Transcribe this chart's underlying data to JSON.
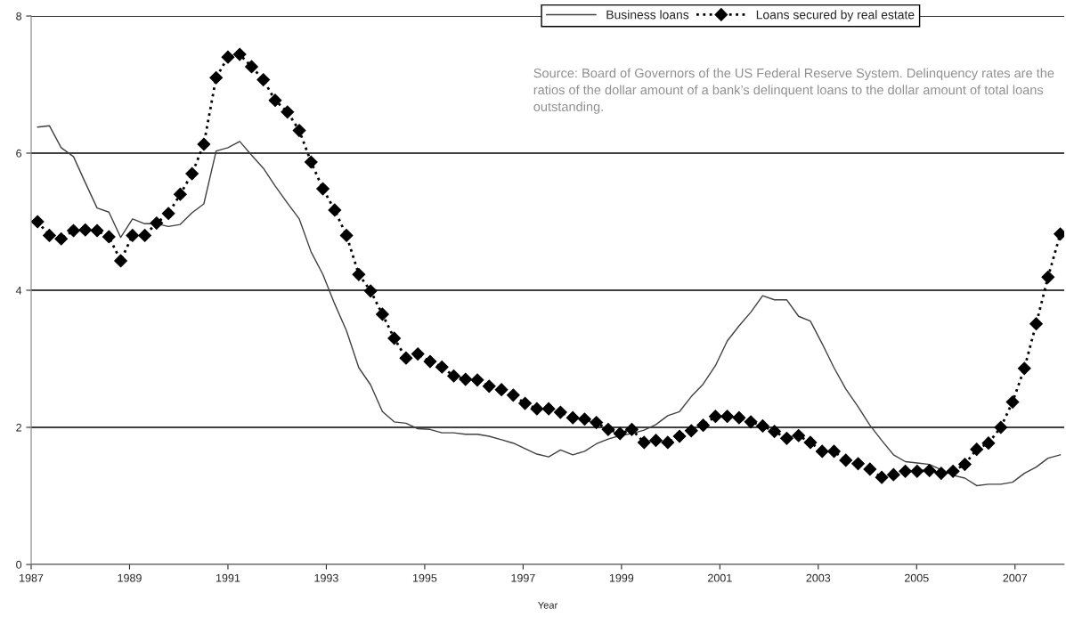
{
  "chart_data": {
    "type": "line",
    "xlabel": "Year",
    "xlim": [
      1987,
      2008
    ],
    "xticks": [
      1987,
      1989,
      1991,
      1993,
      1995,
      1997,
      1999,
      2001,
      2003,
      2005,
      2007
    ],
    "ylim": [
      0,
      8
    ],
    "yticks": [
      0,
      2,
      4,
      6,
      8
    ],
    "grid": "y",
    "legend": "top right",
    "x": [
      1987.13,
      1987.37,
      1987.61,
      1987.86,
      1988.1,
      1988.34,
      1988.58,
      1988.82,
      1989.06,
      1989.31,
      1989.55,
      1989.79,
      1990.03,
      1990.27,
      1990.51,
      1990.76,
      1991.0,
      1991.24,
      1991.48,
      1991.72,
      1991.96,
      1992.21,
      1992.45,
      1992.69,
      1992.93,
      1993.17,
      1993.41,
      1993.66,
      1993.9,
      1994.14,
      1994.38,
      1994.62,
      1994.86,
      1995.11,
      1995.35,
      1995.59,
      1995.83,
      1996.07,
      1996.31,
      1996.56,
      1996.8,
      1997.04,
      1997.28,
      1997.52,
      1997.76,
      1998.01,
      1998.25,
      1998.49,
      1998.73,
      1998.97,
      1999.21,
      1999.46,
      1999.7,
      1999.94,
      2000.18,
      2000.42,
      2000.66,
      2000.91,
      2001.15,
      2001.39,
      2001.63,
      2001.87,
      2002.11,
      2002.36,
      2002.6,
      2002.84,
      2003.08,
      2003.32,
      2003.56,
      2003.81,
      2004.05,
      2004.29,
      2004.53,
      2004.77,
      2005.01,
      2005.26,
      2005.5,
      2005.74,
      2005.98,
      2006.22,
      2006.46,
      2006.71,
      2006.95,
      2007.19,
      2007.43,
      2007.67,
      2007.92
    ],
    "series": [
      {
        "name": "Business loans",
        "color": "#404040",
        "line_style": "solid",
        "marker": "none",
        "values": [
          6.38,
          6.4,
          6.08,
          5.95,
          5.57,
          5.2,
          5.14,
          4.77,
          5.04,
          4.97,
          4.97,
          4.93,
          4.96,
          5.13,
          5.26,
          6.03,
          6.08,
          6.17,
          5.97,
          5.78,
          5.52,
          5.27,
          5.04,
          4.56,
          4.23,
          3.8,
          3.41,
          2.87,
          2.62,
          2.23,
          2.08,
          2.06,
          1.98,
          1.97,
          1.92,
          1.92,
          1.9,
          1.9,
          1.87,
          1.82,
          1.77,
          1.69,
          1.61,
          1.57,
          1.67,
          1.6,
          1.65,
          1.76,
          1.83,
          1.88,
          1.91,
          1.96,
          2.04,
          2.17,
          2.23,
          2.45,
          2.63,
          2.9,
          3.26,
          3.48,
          3.68,
          3.92,
          3.86,
          3.86,
          3.62,
          3.55,
          3.22,
          2.87,
          2.56,
          2.3,
          2.03,
          1.81,
          1.6,
          1.5,
          1.48,
          1.46,
          1.38,
          1.3,
          1.26,
          1.15,
          1.17,
          1.17,
          1.2,
          1.33,
          1.42,
          1.55,
          1.6
        ]
      },
      {
        "name": "Loans secured by real estate",
        "color": "#000000",
        "line_style": "dotted",
        "marker": "diamond",
        "values": [
          5.0,
          4.8,
          4.75,
          4.87,
          4.88,
          4.87,
          4.78,
          4.43,
          4.8,
          4.8,
          4.98,
          5.12,
          5.4,
          5.7,
          6.13,
          7.1,
          7.4,
          7.44,
          7.26,
          7.07,
          6.77,
          6.6,
          6.33,
          5.87,
          5.48,
          5.17,
          4.8,
          4.23,
          3.99,
          3.65,
          3.3,
          3.01,
          3.07,
          2.96,
          2.88,
          2.75,
          2.7,
          2.69,
          2.6,
          2.55,
          2.47,
          2.35,
          2.27,
          2.27,
          2.22,
          2.14,
          2.12,
          2.07,
          1.97,
          1.91,
          1.97,
          1.78,
          1.81,
          1.78,
          1.87,
          1.95,
          2.03,
          2.16,
          2.16,
          2.14,
          2.08,
          2.02,
          1.94,
          1.84,
          1.88,
          1.78,
          1.65,
          1.65,
          1.52,
          1.47,
          1.39,
          1.27,
          1.31,
          1.36,
          1.36,
          1.37,
          1.33,
          1.36,
          1.46,
          1.68,
          1.77,
          2.0,
          2.37,
          2.86,
          3.51,
          4.19,
          4.82
        ]
      }
    ],
    "annotations": [
      "Source: Board of Governors of the US Federal Reserve System. Delinquency rates are the ratios of the dollar amount of a bank’s delinquent loans to the dollar amount of total loans outstanding."
    ]
  }
}
